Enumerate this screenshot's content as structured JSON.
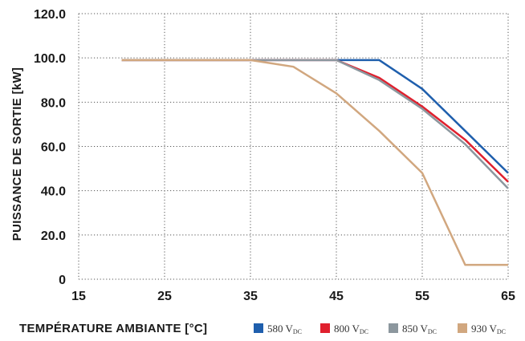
{
  "chart_data": {
    "type": "line",
    "xlabel": "TEMPÉRATURE AMBIANTE [°C]",
    "ylabel": "PUISSANCE DE SORTIE [kW]",
    "xlim": [
      15,
      65
    ],
    "ylim": [
      0,
      120
    ],
    "x_ticks": [
      "15",
      "25",
      "35",
      "45",
      "55",
      "65"
    ],
    "y_ticks": [
      "0",
      "20.0",
      "40.0",
      "60.0",
      "80.0",
      "100.0",
      "120.0"
    ],
    "grid": true,
    "legend_position": "bottom-right",
    "series": [
      {
        "name": "580 V",
        "name_sub": "DC",
        "color": "#1f5fad",
        "points": [
          [
            20,
            99
          ],
          [
            25,
            99
          ],
          [
            35,
            99
          ],
          [
            45,
            99
          ],
          [
            50,
            99
          ],
          [
            55,
            86
          ],
          [
            60,
            67
          ],
          [
            65,
            48
          ]
        ]
      },
      {
        "name": "800 V",
        "name_sub": "DC",
        "color": "#e0202e",
        "points": [
          [
            20,
            99
          ],
          [
            35,
            99
          ],
          [
            45,
            99
          ],
          [
            50,
            91
          ],
          [
            55,
            78
          ],
          [
            60,
            63
          ],
          [
            65,
            44
          ]
        ]
      },
      {
        "name": "850 V",
        "name_sub": "DC",
        "color": "#8c979e",
        "points": [
          [
            20,
            99
          ],
          [
            35,
            99
          ],
          [
            45,
            99
          ],
          [
            50,
            90
          ],
          [
            55,
            77
          ],
          [
            60,
            61
          ],
          [
            65,
            41
          ]
        ]
      },
      {
        "name": "930 V",
        "name_sub": "DC",
        "color": "#d1a77f",
        "points": [
          [
            20,
            99
          ],
          [
            35,
            99
          ],
          [
            40,
            96
          ],
          [
            45,
            84
          ],
          [
            50,
            67
          ],
          [
            55,
            48
          ],
          [
            60,
            6.5
          ],
          [
            65,
            6.5
          ]
        ]
      }
    ]
  }
}
